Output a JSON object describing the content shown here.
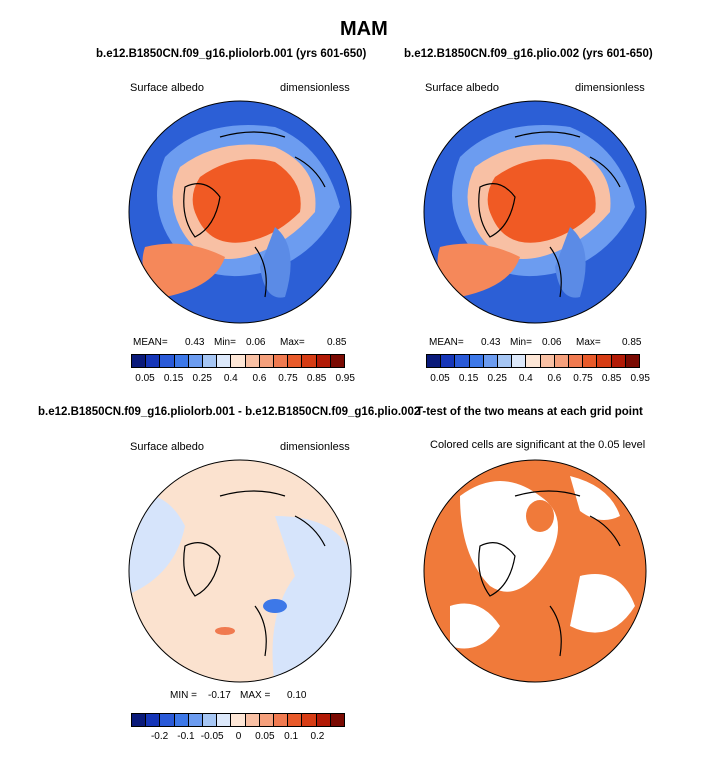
{
  "title": "MAM",
  "panels": [
    {
      "title": "b.e12.B1850CN.f09_g16.pliolorb.001 (yrs 601-650)",
      "left_label": "Surface albedo",
      "right_label": "dimensionless",
      "mean_label": "MEAN=",
      "mean": "0.43",
      "min_label": "Min=",
      "min": "0.06",
      "max_label": "Max=",
      "max": "0.85"
    },
    {
      "title": "b.e12.B1850CN.f09_g16.plio.002 (yrs 601-650)",
      "left_label": "Surface albedo",
      "right_label": "dimensionless",
      "mean_label": "MEAN=",
      "mean": "0.43",
      "min_label": "Min=",
      "min": "0.06",
      "max_label": "Max=",
      "max": "0.85"
    },
    {
      "title": "b.e12.B1850CN.f09_g16.pliolorb.001 - b.e12.B1850CN.f09_g16.plio.002",
      "left_label": "Surface albedo",
      "right_label": "dimensionless",
      "min_label": "MIN =",
      "min": "-0.17",
      "max_label": "MAX =",
      "max": "0.10"
    },
    {
      "title": "T-test of the two means at each grid point",
      "note": "Colored cells are significant at the 0.05 level"
    }
  ],
  "colorbar_abs": {
    "colors": [
      "#0a1a7a",
      "#1636b8",
      "#2a5ad8",
      "#3d78e8",
      "#6c9cf0",
      "#a6c6f4",
      "#dce8fa",
      "#fde6d6",
      "#f8c0a4",
      "#f5a07c",
      "#f07a50",
      "#e85a2a",
      "#d63c14",
      "#b21a06",
      "#7a0a02"
    ],
    "labels": [
      "0.05",
      "0.15",
      "0.25",
      "0.4",
      "0.6",
      "0.75",
      "0.85",
      "0.95"
    ]
  },
  "colorbar_diff": {
    "colors": [
      "#0a1a7a",
      "#1636b8",
      "#2a5ad8",
      "#3d78e8",
      "#6c9cf0",
      "#a6c6f4",
      "#dce8fa",
      "#fde6d6",
      "#f8c0a4",
      "#f5a07c",
      "#f07a50",
      "#e85a2a",
      "#d63c14",
      "#b21a06",
      "#7a0a02"
    ],
    "labels": [
      "-0.2",
      "-0.1",
      "-0.05",
      "0",
      "0.05",
      "0.1",
      "0.2"
    ]
  },
  "map_colors": {
    "ocean_low": "#2c5fd6",
    "ocean_mid": "#5b8be6",
    "land_high": "#f05a24",
    "land_mid": "#f5885a",
    "light": "#f8c0a4",
    "diff_pos": "#fbe2cf",
    "diff_neg": "#d6e4fb",
    "diff_neg_strong": "#3d78e8",
    "diff_pos_strong": "#f07a50",
    "ttest_fill": "#f07a3a"
  }
}
